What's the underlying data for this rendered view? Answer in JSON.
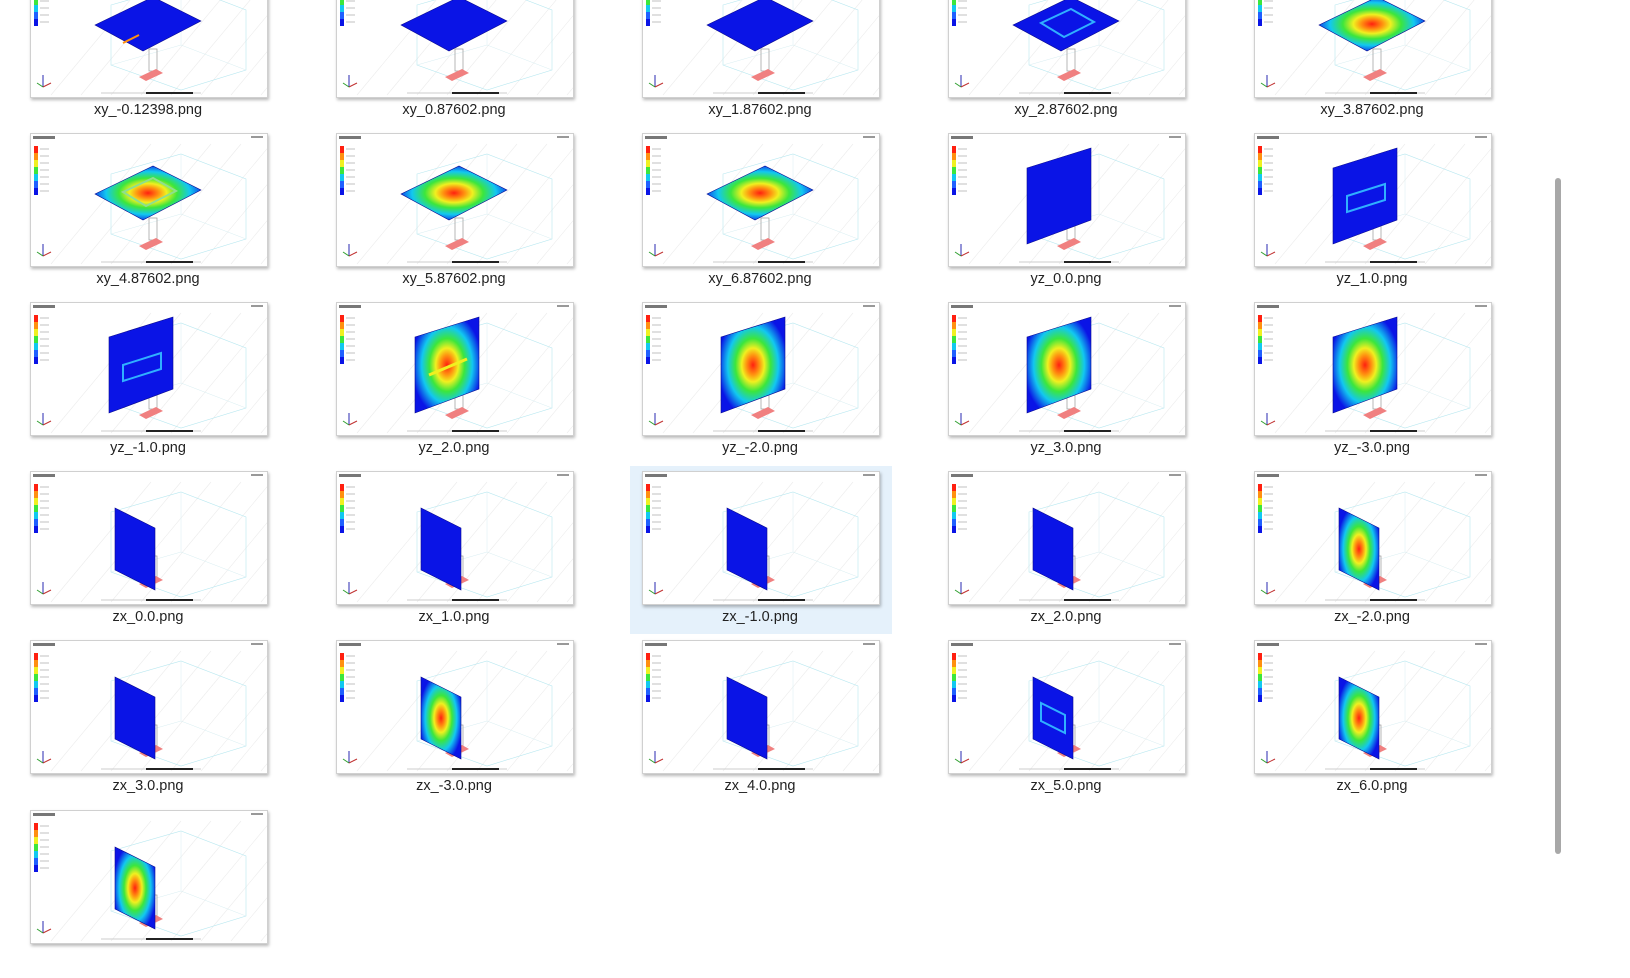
{
  "files": [
    {
      "name": "xy_-0.12398.png",
      "plane": "xy",
      "pattern": "blue_hot_edge",
      "selected": false
    },
    {
      "name": "xy_0.87602.png",
      "plane": "xy",
      "pattern": "blue",
      "selected": false
    },
    {
      "name": "xy_1.87602.png",
      "plane": "xy",
      "pattern": "blue",
      "selected": false
    },
    {
      "name": "xy_2.87602.png",
      "plane": "xy",
      "pattern": "blue_ring",
      "selected": false
    },
    {
      "name": "xy_3.87602.png",
      "plane": "xy",
      "pattern": "hot_center",
      "selected": false
    },
    {
      "name": "xy_4.87602.png",
      "plane": "xy",
      "pattern": "ring",
      "selected": false
    },
    {
      "name": "xy_5.87602.png",
      "plane": "xy",
      "pattern": "hot_center",
      "selected": false
    },
    {
      "name": "xy_6.87602.png",
      "plane": "xy",
      "pattern": "hot_center",
      "selected": false
    },
    {
      "name": "yz_0.0.png",
      "plane": "yz",
      "pattern": "blue",
      "selected": false
    },
    {
      "name": "yz_1.0.png",
      "plane": "yz",
      "pattern": "blue_ring",
      "selected": false
    },
    {
      "name": "yz_-1.0.png",
      "plane": "yz",
      "pattern": "blue_ring",
      "selected": false
    },
    {
      "name": "yz_2.0.png",
      "plane": "yz",
      "pattern": "warm_strip",
      "selected": false
    },
    {
      "name": "yz_-2.0.png",
      "plane": "yz",
      "pattern": "hot_center",
      "selected": false
    },
    {
      "name": "yz_3.0.png",
      "plane": "yz",
      "pattern": "hot_center",
      "selected": false
    },
    {
      "name": "yz_-3.0.png",
      "plane": "yz",
      "pattern": "hot_center",
      "selected": false
    },
    {
      "name": "zx_0.0.png",
      "plane": "zx",
      "pattern": "blue",
      "selected": false
    },
    {
      "name": "zx_1.0.png",
      "plane": "zx",
      "pattern": "blue",
      "selected": false
    },
    {
      "name": "zx_-1.0.png",
      "plane": "zx",
      "pattern": "blue",
      "selected": true
    },
    {
      "name": "zx_2.0.png",
      "plane": "zx",
      "pattern": "blue",
      "selected": false
    },
    {
      "name": "zx_-2.0.png",
      "plane": "zx",
      "pattern": "hot_center",
      "selected": false
    },
    {
      "name": "zx_3.0.png",
      "plane": "zx",
      "pattern": "blue",
      "selected": false
    },
    {
      "name": "zx_-3.0.png",
      "plane": "zx",
      "pattern": "hot_center",
      "selected": false
    },
    {
      "name": "zx_4.0.png",
      "plane": "zx",
      "pattern": "blue",
      "selected": false
    },
    {
      "name": "zx_5.0.png",
      "plane": "zx",
      "pattern": "blue_ring",
      "selected": false
    },
    {
      "name": "zx_6.0.png",
      "plane": "zx",
      "pattern": "hot_center",
      "selected": false
    },
    {
      "name": "",
      "plane": "zx",
      "pattern": "hot_center",
      "selected": false
    }
  ],
  "colors": {
    "selection_bg": "#e5f1fb",
    "field_blue": "#0a14e6",
    "field_cyan": "#12c8f0",
    "field_green": "#3ce63c",
    "field_yellow": "#f0f020",
    "field_orange": "#ff9010",
    "field_red": "#ff2010"
  },
  "icons": {
    "axis_triad": "axis-triad-icon",
    "legend_scale": "color-scale-legend"
  }
}
